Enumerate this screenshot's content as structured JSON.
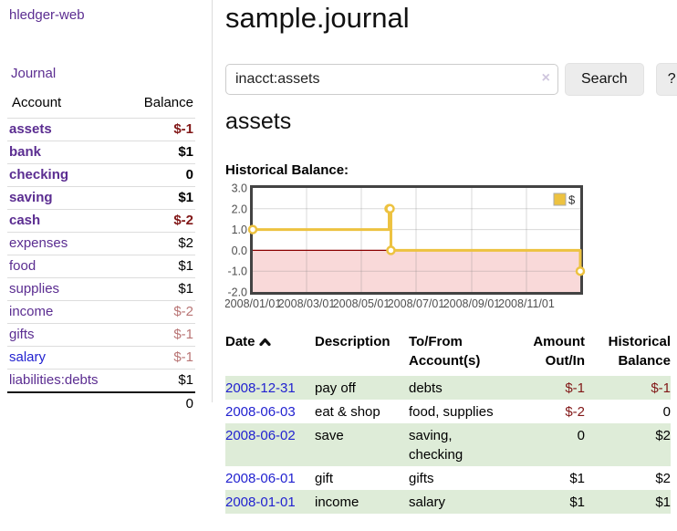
{
  "app": {
    "brand": "hledger-web",
    "nav_journal": "Journal"
  },
  "sidebar": {
    "headers": [
      "Account",
      "Balance"
    ],
    "accounts": [
      {
        "name": "assets",
        "balance": "$-1"
      },
      {
        "name": "bank",
        "balance": "$1"
      },
      {
        "name": "checking",
        "balance": "0"
      },
      {
        "name": "saving",
        "balance": "$1"
      },
      {
        "name": "cash",
        "balance": "$-2"
      },
      {
        "name": "expenses",
        "balance": "$2"
      },
      {
        "name": "food",
        "balance": "$1"
      },
      {
        "name": "supplies",
        "balance": "$1"
      },
      {
        "name": "income",
        "balance": "$-2"
      },
      {
        "name": "gifts",
        "balance": "$-1"
      },
      {
        "name": "salary",
        "balance": "$-1"
      },
      {
        "name": "liabilities:debts",
        "balance": "$1"
      }
    ],
    "total": "0"
  },
  "header": {
    "title": "sample.journal"
  },
  "search": {
    "value": "inacct:assets",
    "clear_icon": "×",
    "button_label": "Search",
    "help_label": "?"
  },
  "account_page": {
    "heading": "assets",
    "chart_label": "Historical Balance:"
  },
  "chart_data": {
    "type": "line",
    "step": true,
    "title": "Historical Balance:",
    "series": [
      {
        "name": "$",
        "color": "#EDC240",
        "points": [
          [
            "2008-01-01",
            1
          ],
          [
            "2008-06-01",
            2
          ],
          [
            "2008-06-02",
            2
          ],
          [
            "2008-06-03",
            0
          ],
          [
            "2008-12-31",
            -1
          ]
        ]
      }
    ],
    "x_ticks": [
      [
        "2008-01-01",
        "2008/01/01"
      ],
      [
        "2008-03-01",
        "2008/03/01"
      ],
      [
        "2008-05-01",
        "2008/05/01"
      ],
      [
        "2008-07-01",
        "2008/07/01"
      ],
      [
        "2008-09-01",
        "2008/09/01"
      ],
      [
        "2008-11-01",
        "2008/11/01"
      ]
    ],
    "y_ticks": [
      3.0,
      2.0,
      1.0,
      0.0,
      -1.0,
      -2.0
    ],
    "ylim": [
      -2,
      3
    ],
    "xlim": [
      "2008-01-01",
      "2008-12-31"
    ],
    "legend": {
      "label": "$",
      "position": "top-right"
    },
    "grid": true,
    "negative_region_color": "#f9d9d9",
    "zero_line_color": "#8b0000",
    "border_color": "#434343"
  },
  "register": {
    "headers": {
      "date": "Date",
      "description": "Description",
      "accounts": "To/From Account(s)",
      "amount": "Amount Out/In",
      "balance": "Historical Balance"
    },
    "rows": [
      {
        "date": "2008-12-31",
        "description": "pay off",
        "accounts": "debts",
        "amount": "$-1",
        "balance": "$-1"
      },
      {
        "date": "2008-06-03",
        "description": "eat & shop",
        "accounts": "food, supplies",
        "amount": "$-2",
        "balance": "0"
      },
      {
        "date": "2008-06-02",
        "description": "save",
        "accounts": "saving, checking",
        "amount": "0",
        "balance": "$2"
      },
      {
        "date": "2008-06-01",
        "description": "gift",
        "accounts": "gifts",
        "amount": "$1",
        "balance": "$2"
      },
      {
        "date": "2008-01-01",
        "description": "income",
        "accounts": "salary",
        "amount": "$1",
        "balance": "$1"
      }
    ]
  },
  "colors": {
    "link_purple": "#5b2d91",
    "link_blue": "#2222d0",
    "negative_strong": "#811717",
    "negative_soft": "#b97575",
    "row_stripe_green": "#deecd8",
    "series_gold": "#EDC240",
    "negative_region_pink": "#f9d9d9",
    "zero_line_red": "#8b0000"
  }
}
